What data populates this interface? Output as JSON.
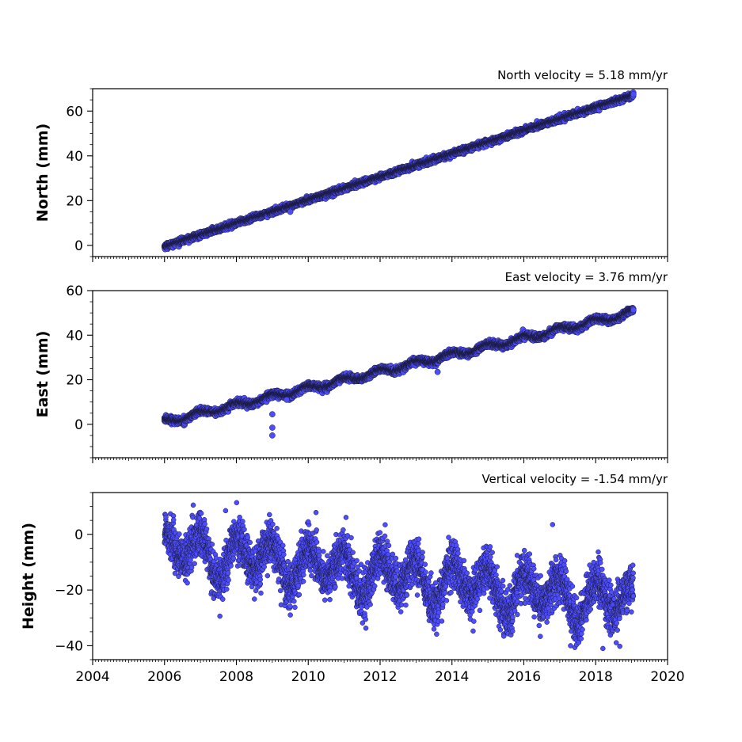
{
  "chart_data": [
    {
      "type": "scatter",
      "title": "North velocity = 5.18 mm/yr",
      "ylabel": "North (mm)",
      "xlim": [
        2004,
        2020
      ],
      "ylim": [
        -5,
        70
      ],
      "yticks": [
        0,
        20,
        40,
        60
      ],
      "x_major_ticks": [
        2004,
        2006,
        2008,
        2010,
        2012,
        2014,
        2016,
        2018,
        2020
      ],
      "x_tick_labels_shown": false,
      "marker_color": "#4d4dff",
      "marker_edge": "#1a1a3a",
      "series": [
        {
          "x_range": [
            2006.0,
            2019.05
          ],
          "trend": {
            "velocity_mm_per_yr": 5.18,
            "value_at_start": -0.5
          },
          "noise_mm": 0.6,
          "outliers": [
            [
              2009.5,
              15.0
            ]
          ]
        }
      ]
    },
    {
      "type": "scatter",
      "title": "East velocity = 3.76 mm/yr",
      "ylabel": "East (mm)",
      "xlim": [
        2004,
        2020
      ],
      "ylim": [
        -15,
        60
      ],
      "yticks": [
        0,
        20,
        40,
        60
      ],
      "x_major_ticks": [
        2004,
        2006,
        2008,
        2010,
        2012,
        2014,
        2016,
        2018,
        2020
      ],
      "x_tick_labels_shown": false,
      "marker_color": "#4d4dff",
      "marker_edge": "#1a1a3a",
      "series": [
        {
          "x_range": [
            2006.0,
            2019.05
          ],
          "trend": {
            "velocity_mm_per_yr": 3.76,
            "value_at_start": 1.0
          },
          "seasonal_amplitude_mm": 1.2,
          "noise_mm": 0.7,
          "outliers": [
            [
              2009.0,
              4.5
            ],
            [
              2009.0,
              -1.5
            ],
            [
              2009.0,
              -5.0
            ],
            [
              2013.6,
              23.5
            ],
            [
              2009.4,
              11.0
            ]
          ]
        }
      ]
    },
    {
      "type": "scatter",
      "title": "Vertical velocity = -1.54 mm/yr",
      "ylabel": "Height (mm)",
      "xlim": [
        2004,
        2020
      ],
      "ylim": [
        -45,
        15
      ],
      "yticks": [
        -40,
        -20,
        0
      ],
      "x_major_ticks": [
        2004,
        2006,
        2008,
        2010,
        2012,
        2014,
        2016,
        2018,
        2020
      ],
      "x_tick_labels": [
        "2004",
        "2006",
        "2008",
        "2010",
        "2012",
        "2014",
        "2016",
        "2018",
        "2020"
      ],
      "x_tick_labels_shown": true,
      "marker_color": "#4d4dff",
      "marker_edge": "#1a1a3a",
      "series": [
        {
          "x_range": [
            2006.0,
            2019.05
          ],
          "trend": {
            "velocity_mm_per_yr": -1.54,
            "value_at_start": -5.0
          },
          "seasonal_amplitude_mm": 6.5,
          "noise_mm": 4.0,
          "outliers": [
            [
              2006.8,
              10.5
            ],
            [
              2007.7,
              8.5
            ],
            [
              2016.8,
              3.5
            ],
            [
              2010.0,
              4.5
            ],
            [
              2018.2,
              -41.0
            ],
            [
              2017.3,
              -40.0
            ],
            [
              2012.2,
              -2.5
            ]
          ]
        }
      ]
    }
  ]
}
